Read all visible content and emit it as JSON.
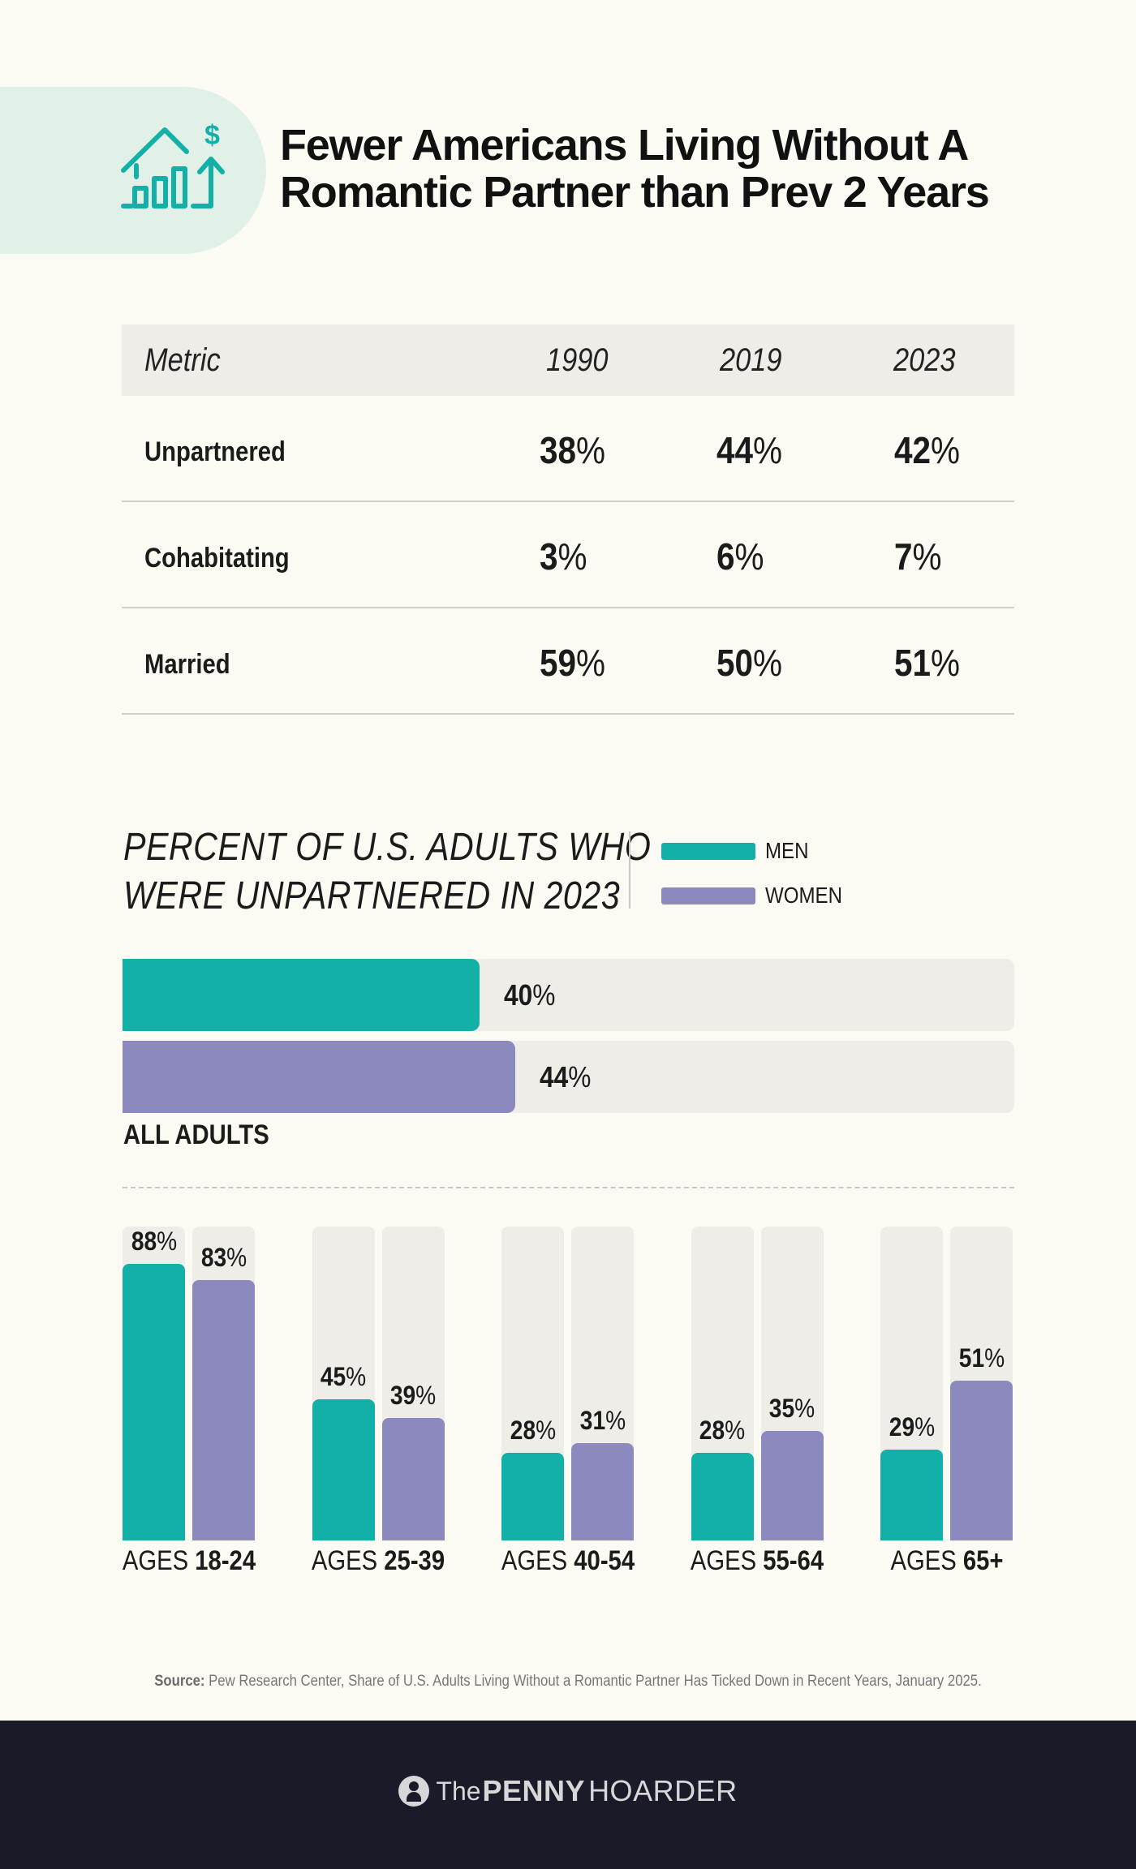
{
  "title": {
    "line1": "Fewer Americans Living Without A",
    "line2": "Romantic Partner than Prev 2 Years"
  },
  "table": {
    "headers": [
      "Metric",
      "1990",
      "2019",
      "2023"
    ],
    "rows": [
      {
        "label": "Unpartnered",
        "values": [
          "38",
          "44",
          "42"
        ]
      },
      {
        "label": "Cohabitating",
        "values": [
          "3",
          "6",
          "7"
        ]
      },
      {
        "label": "Married",
        "values": [
          "59",
          "50",
          "51"
        ]
      }
    ],
    "pct_symbol": "%"
  },
  "chart_title": {
    "line1": "PERCENT OF U.S. ADULTS WHO",
    "line2": "WERE UNPARTNERED IN 2023"
  },
  "legend": [
    {
      "label": "MEN",
      "color": "#12b0a6"
    },
    {
      "label": "WOMEN",
      "color": "#8b89bd"
    }
  ],
  "chart_data": [
    {
      "type": "bar",
      "orientation": "horizontal",
      "categories": [
        "ALL ADULTS"
      ],
      "series": [
        {
          "name": "MEN",
          "values": [
            40
          ]
        },
        {
          "name": "WOMEN",
          "values": [
            44
          ]
        }
      ],
      "xlim": [
        0,
        100
      ]
    },
    {
      "type": "bar",
      "orientation": "vertical",
      "categories": [
        "18-24",
        "25-39",
        "40-54",
        "55-64",
        "65+"
      ],
      "category_prefix": "AGES",
      "series": [
        {
          "name": "MEN",
          "values": [
            88,
            45,
            28,
            28,
            29
          ]
        },
        {
          "name": "WOMEN",
          "values": [
            83,
            39,
            31,
            35,
            51
          ]
        }
      ],
      "ylim": [
        0,
        100
      ]
    }
  ],
  "source": {
    "label": "Source:",
    "text": "Pew Research Center, Share of U.S. Adults Living Without a Romantic Partner Has Ticked Down in Recent Years, January 2025."
  },
  "brand": {
    "the": "The",
    "penny": "PENNY",
    "hoarder": "HOARDER"
  },
  "icons": {
    "hero": "house-growth-dollar-icon",
    "brand": "person-icon"
  },
  "colors": {
    "accent": "#12b0a6",
    "secondary": "#8b89bd",
    "track": "#eeede7",
    "background": "#fcfbf3",
    "footer": "#1a1a28"
  }
}
